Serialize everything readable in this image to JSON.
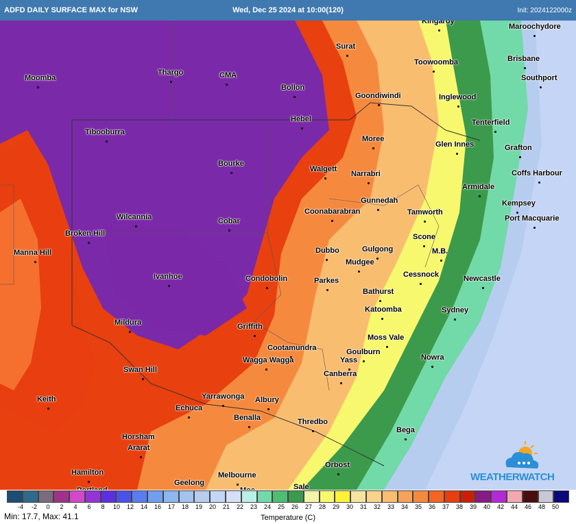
{
  "header": {
    "left_title": "ADFD DAILY SURFACE MAX for NSW",
    "center_title": "Wed, Dec 25 2024 at 10:00(120)",
    "init_label": "Init: 2024122000z"
  },
  "map": {
    "cities": [
      {
        "name": "Moomba"
      },
      {
        "name": "Thargo"
      },
      {
        "name": "CMA"
      },
      {
        "name": "Bollon"
      },
      {
        "name": "Surat"
      },
      {
        "name": "Kingaroy"
      },
      {
        "name": "Maroochydore"
      },
      {
        "name": "Toowoomba"
      },
      {
        "name": "Brisbane"
      },
      {
        "name": "Southport"
      },
      {
        "name": "Goondiwindi"
      },
      {
        "name": "Inglewood"
      },
      {
        "name": "Hebel"
      },
      {
        "name": "Tibooburra"
      },
      {
        "name": "Tenterfield"
      },
      {
        "name": "Moree"
      },
      {
        "name": "Glen Innes"
      },
      {
        "name": "Grafton"
      },
      {
        "name": "Bourke"
      },
      {
        "name": "Walgett"
      },
      {
        "name": "Narrabri"
      },
      {
        "name": "Coffs Harbour"
      },
      {
        "name": "Armidale"
      },
      {
        "name": "Gunnedah"
      },
      {
        "name": "Kempsey"
      },
      {
        "name": "Wilcannia"
      },
      {
        "name": "Cobar"
      },
      {
        "name": "Coonabarabran"
      },
      {
        "name": "Tamworth"
      },
      {
        "name": "Port Macquarie"
      },
      {
        "name": "Broken Hill"
      },
      {
        "name": "Scone"
      },
      {
        "name": "Manna Hill"
      },
      {
        "name": "Dubbo"
      },
      {
        "name": "Gulgong"
      },
      {
        "name": "M.B."
      },
      {
        "name": "Mudgee"
      },
      {
        "name": "Cessnock"
      },
      {
        "name": "Ivanhoe"
      },
      {
        "name": "Condobolin"
      },
      {
        "name": "Parkes"
      },
      {
        "name": "Newcastle"
      },
      {
        "name": "Bathurst"
      },
      {
        "name": "Katoomba"
      },
      {
        "name": "Sydney"
      },
      {
        "name": "Mildura"
      },
      {
        "name": "Griffith"
      },
      {
        "name": "Moss Vale"
      },
      {
        "name": "Cootamundra"
      },
      {
        "name": "Goulburn"
      },
      {
        "name": "Wagga Wagga"
      },
      {
        "name": "Yass"
      },
      {
        "name": "Nowra"
      },
      {
        "name": "Swan Hill"
      },
      {
        "name": "Canberra"
      },
      {
        "name": "Keith"
      },
      {
        "name": "Yarrawonga"
      },
      {
        "name": "Albury"
      },
      {
        "name": "Echuca"
      },
      {
        "name": "Benalla"
      },
      {
        "name": "Thredbo"
      },
      {
        "name": "Bega"
      },
      {
        "name": "Horsham"
      },
      {
        "name": "Ararat"
      },
      {
        "name": "Orbost"
      },
      {
        "name": "Hamilton"
      },
      {
        "name": "Geelong"
      },
      {
        "name": "Melbourne"
      },
      {
        "name": "Portland"
      },
      {
        "name": "Moe"
      },
      {
        "name": "Sale"
      }
    ]
  },
  "logo": {
    "text": "WEATHERWATCH",
    "icon": "cloud-sun-icon"
  },
  "legend": {
    "colors": [
      "#1e4d73",
      "#2f6a8a",
      "#7a6b7e",
      "#a0328a",
      "#d248c8",
      "#9433d6",
      "#5d2fe0",
      "#4b52e8",
      "#5b7cef",
      "#6fa0ef",
      "#8cb7f0",
      "#a3c3f0",
      "#b6cdf0",
      "#c5d5f5",
      "#d5e0f8",
      "#baf0e8",
      "#72d9a8",
      "#4fbe72",
      "#3c9a4c",
      "#f4f4a8",
      "#f8f86e",
      "#fff338",
      "#f5e4a0",
      "#f9d38a",
      "#f9bd70",
      "#f6a25a",
      "#f58a3e",
      "#f26522",
      "#e83e10",
      "#c8200a",
      "#881a86",
      "#b22ad6",
      "#f4a8b0",
      "#4a0e0e",
      "#c8c8d8",
      "#0a0a7a"
    ],
    "tick_labels": [
      "-4",
      "-2",
      "0",
      "2",
      "4",
      "6",
      "8",
      "10",
      "12",
      "14",
      "16",
      "17",
      "18",
      "19",
      "20",
      "21",
      "22",
      "23",
      "24",
      "25",
      "26",
      "27",
      "28",
      "29",
      "30",
      "31",
      "32",
      "33",
      "34",
      "35",
      "36",
      "37",
      "38",
      "39",
      "40",
      "42",
      "44",
      "46",
      "48",
      "50"
    ],
    "min_max": "Min: 17.7, Max: 41.1",
    "unit_label": "Temperature (C)"
  }
}
